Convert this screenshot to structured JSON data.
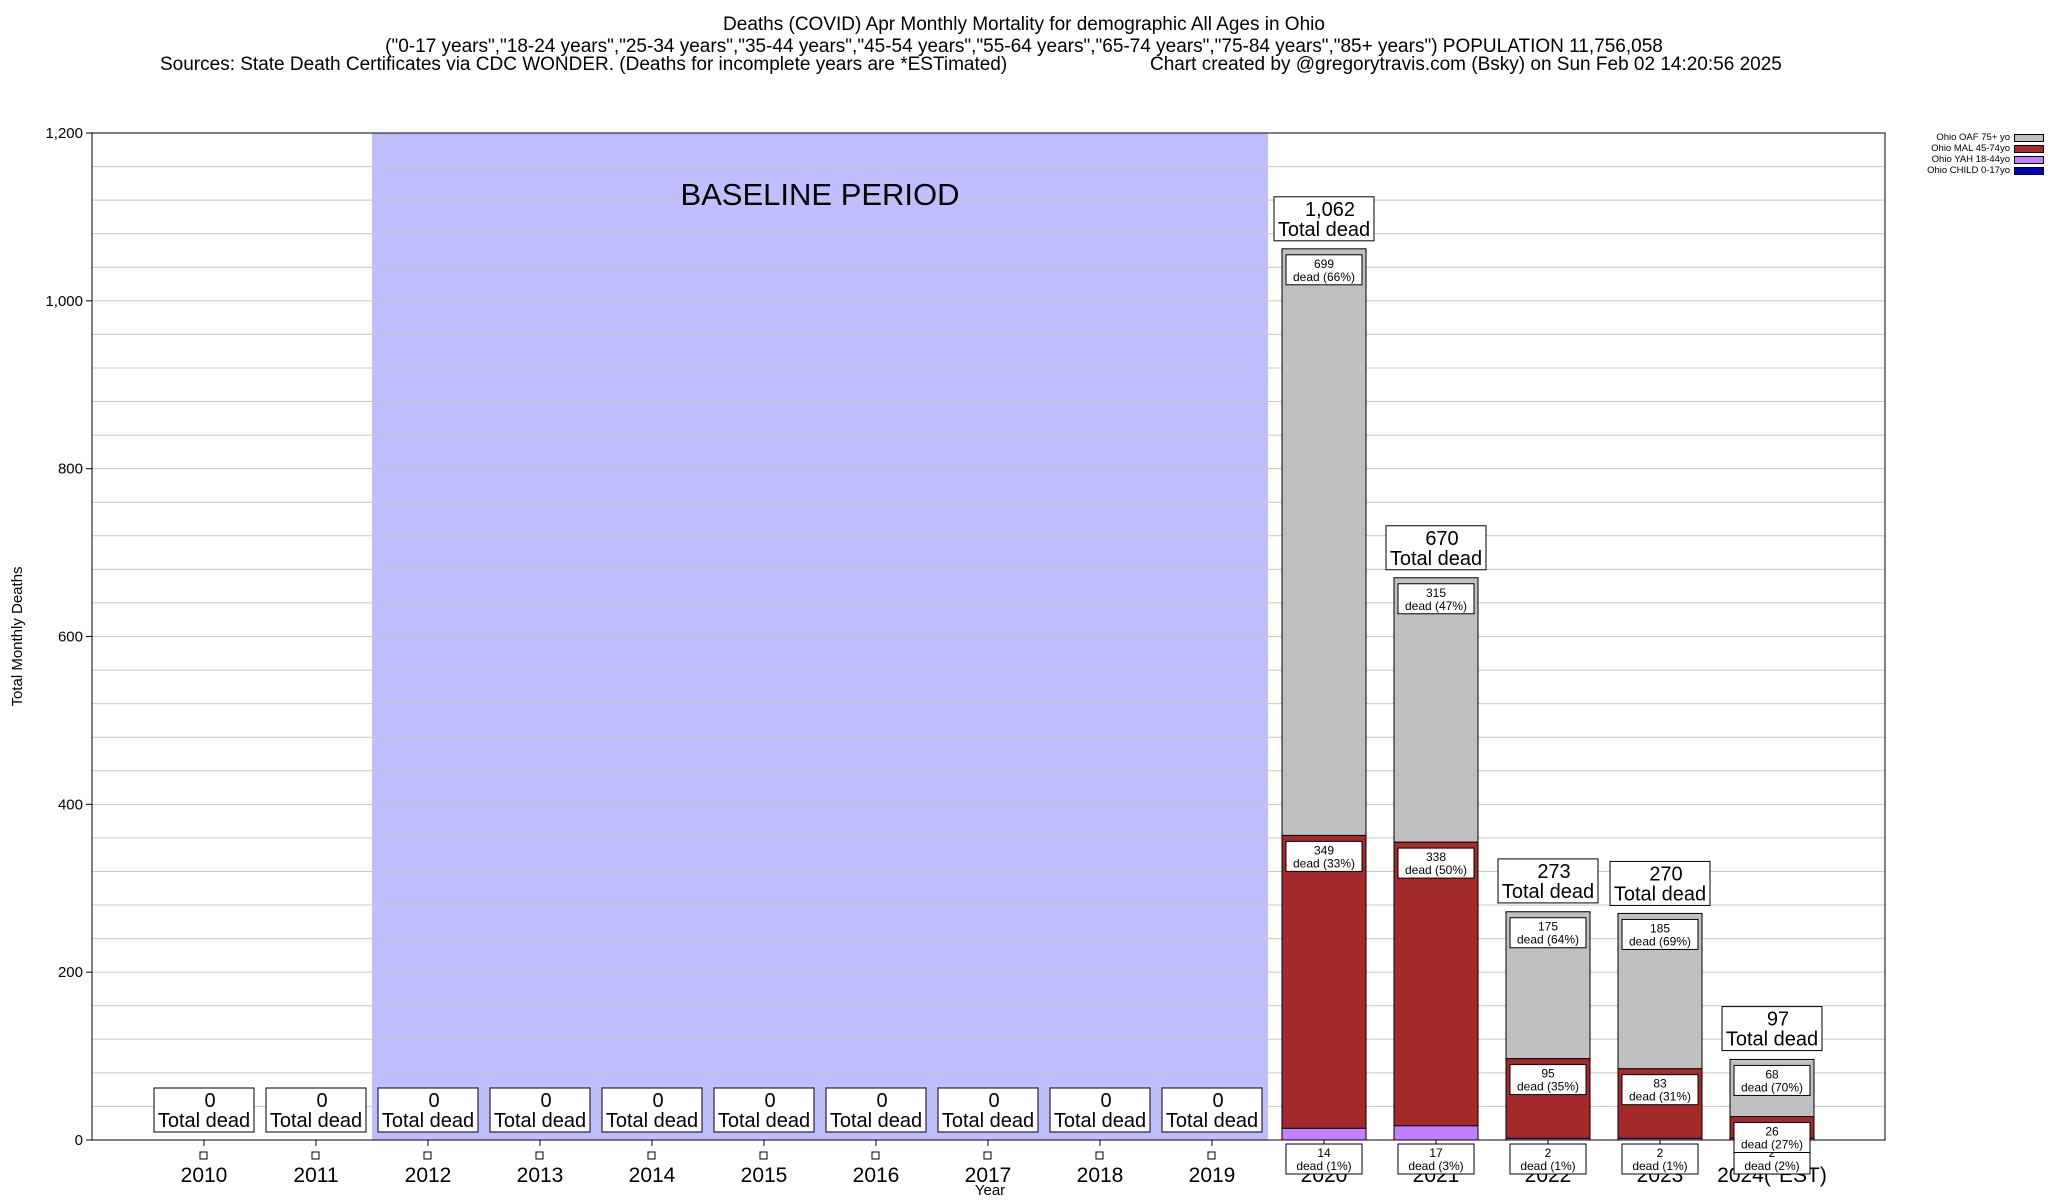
{
  "header": {
    "title": "Deaths (COVID) Apr Monthly Mortality for demographic All Ages in Ohio",
    "subtitle": "(\"0-17 years\",\"18-24 years\",\"25-34 years\",\"35-44 years\",\"45-54 years\",\"55-64 years\",\"65-74 years\",\"75-84 years\",\"85+ years\") POPULATION 11,756,058",
    "sources": "Sources: State Death Certificates via CDC WONDER. (Deaths for incomplete years are *ESTimated)",
    "credit": "Chart created by @gregorytravis.com (Bsky) on Sun Feb 02 14:20:56 2025"
  },
  "chart_data": {
    "type": "bar",
    "stacked": true,
    "xlabel": "Year",
    "ylabel": "Total Monthly Deaths",
    "ylim": [
      0,
      1200
    ],
    "yticks": [
      0,
      200,
      400,
      600,
      800,
      1000,
      1200
    ],
    "ytick_labels": [
      "0",
      "200",
      "400",
      "600",
      "800",
      "1,000",
      "1,200"
    ],
    "grid": true,
    "legend_position": "top-right",
    "baseline_label": "BASELINE PERIOD",
    "baseline_range": [
      "2012",
      "2019"
    ],
    "categories": [
      "2010",
      "2011",
      "2012",
      "2013",
      "2014",
      "2015",
      "2016",
      "2017",
      "2018",
      "2019",
      "2020",
      "2021",
      "2022",
      "2023",
      "2024(*EST)"
    ],
    "totals": [
      0,
      0,
      0,
      0,
      0,
      0,
      0,
      0,
      0,
      0,
      1062,
      670,
      273,
      270,
      97
    ],
    "total_labels": [
      "0",
      "0",
      "0",
      "0",
      "0",
      "0",
      "0",
      "0",
      "0",
      "0",
      "1,062",
      "670",
      "273",
      "270",
      "97"
    ],
    "total_suffix": "Total dead",
    "series": [
      {
        "name": "Ohio CHILD 0-17yo",
        "color": "#0000c0",
        "values": [
          0,
          0,
          0,
          0,
          0,
          0,
          0,
          0,
          0,
          0,
          0,
          0,
          0,
          0,
          0
        ],
        "labels": []
      },
      {
        "name": "Ohio YAH 18-44yo",
        "color": "#c080ff",
        "values": [
          0,
          0,
          0,
          0,
          0,
          0,
          0,
          0,
          0,
          0,
          14,
          17,
          2,
          2,
          2
        ],
        "labels": [
          "",
          "",
          "",
          "",
          "",
          "",
          "",
          "",
          "",
          "",
          "14|dead (1%)",
          "17|dead (3%)",
          "2|dead (1%)",
          "2|dead (1%)",
          "2|dead (2%)"
        ]
      },
      {
        "name": "Ohio MAL 45-74yo",
        "color": "#a52a2a",
        "values": [
          0,
          0,
          0,
          0,
          0,
          0,
          0,
          0,
          0,
          0,
          349,
          338,
          95,
          83,
          26
        ],
        "labels": [
          "",
          "",
          "",
          "",
          "",
          "",
          "",
          "",
          "",
          "",
          "349|dead (33%)",
          "338|dead (50%)",
          "95|dead (35%)",
          "83|dead (31%)",
          "26|dead (27%)"
        ]
      },
      {
        "name": "Ohio OAF 75+ yo",
        "color": "#c0c0c0",
        "values": [
          0,
          0,
          0,
          0,
          0,
          0,
          0,
          0,
          0,
          0,
          699,
          315,
          175,
          185,
          68
        ],
        "labels": [
          "",
          "",
          "",
          "",
          "",
          "",
          "",
          "",
          "",
          "",
          "699|dead (66%)",
          "315|dead (47%)",
          "175|dead (64%)",
          "185|dead (69%)",
          "68|dead (70%)"
        ]
      }
    ]
  }
}
